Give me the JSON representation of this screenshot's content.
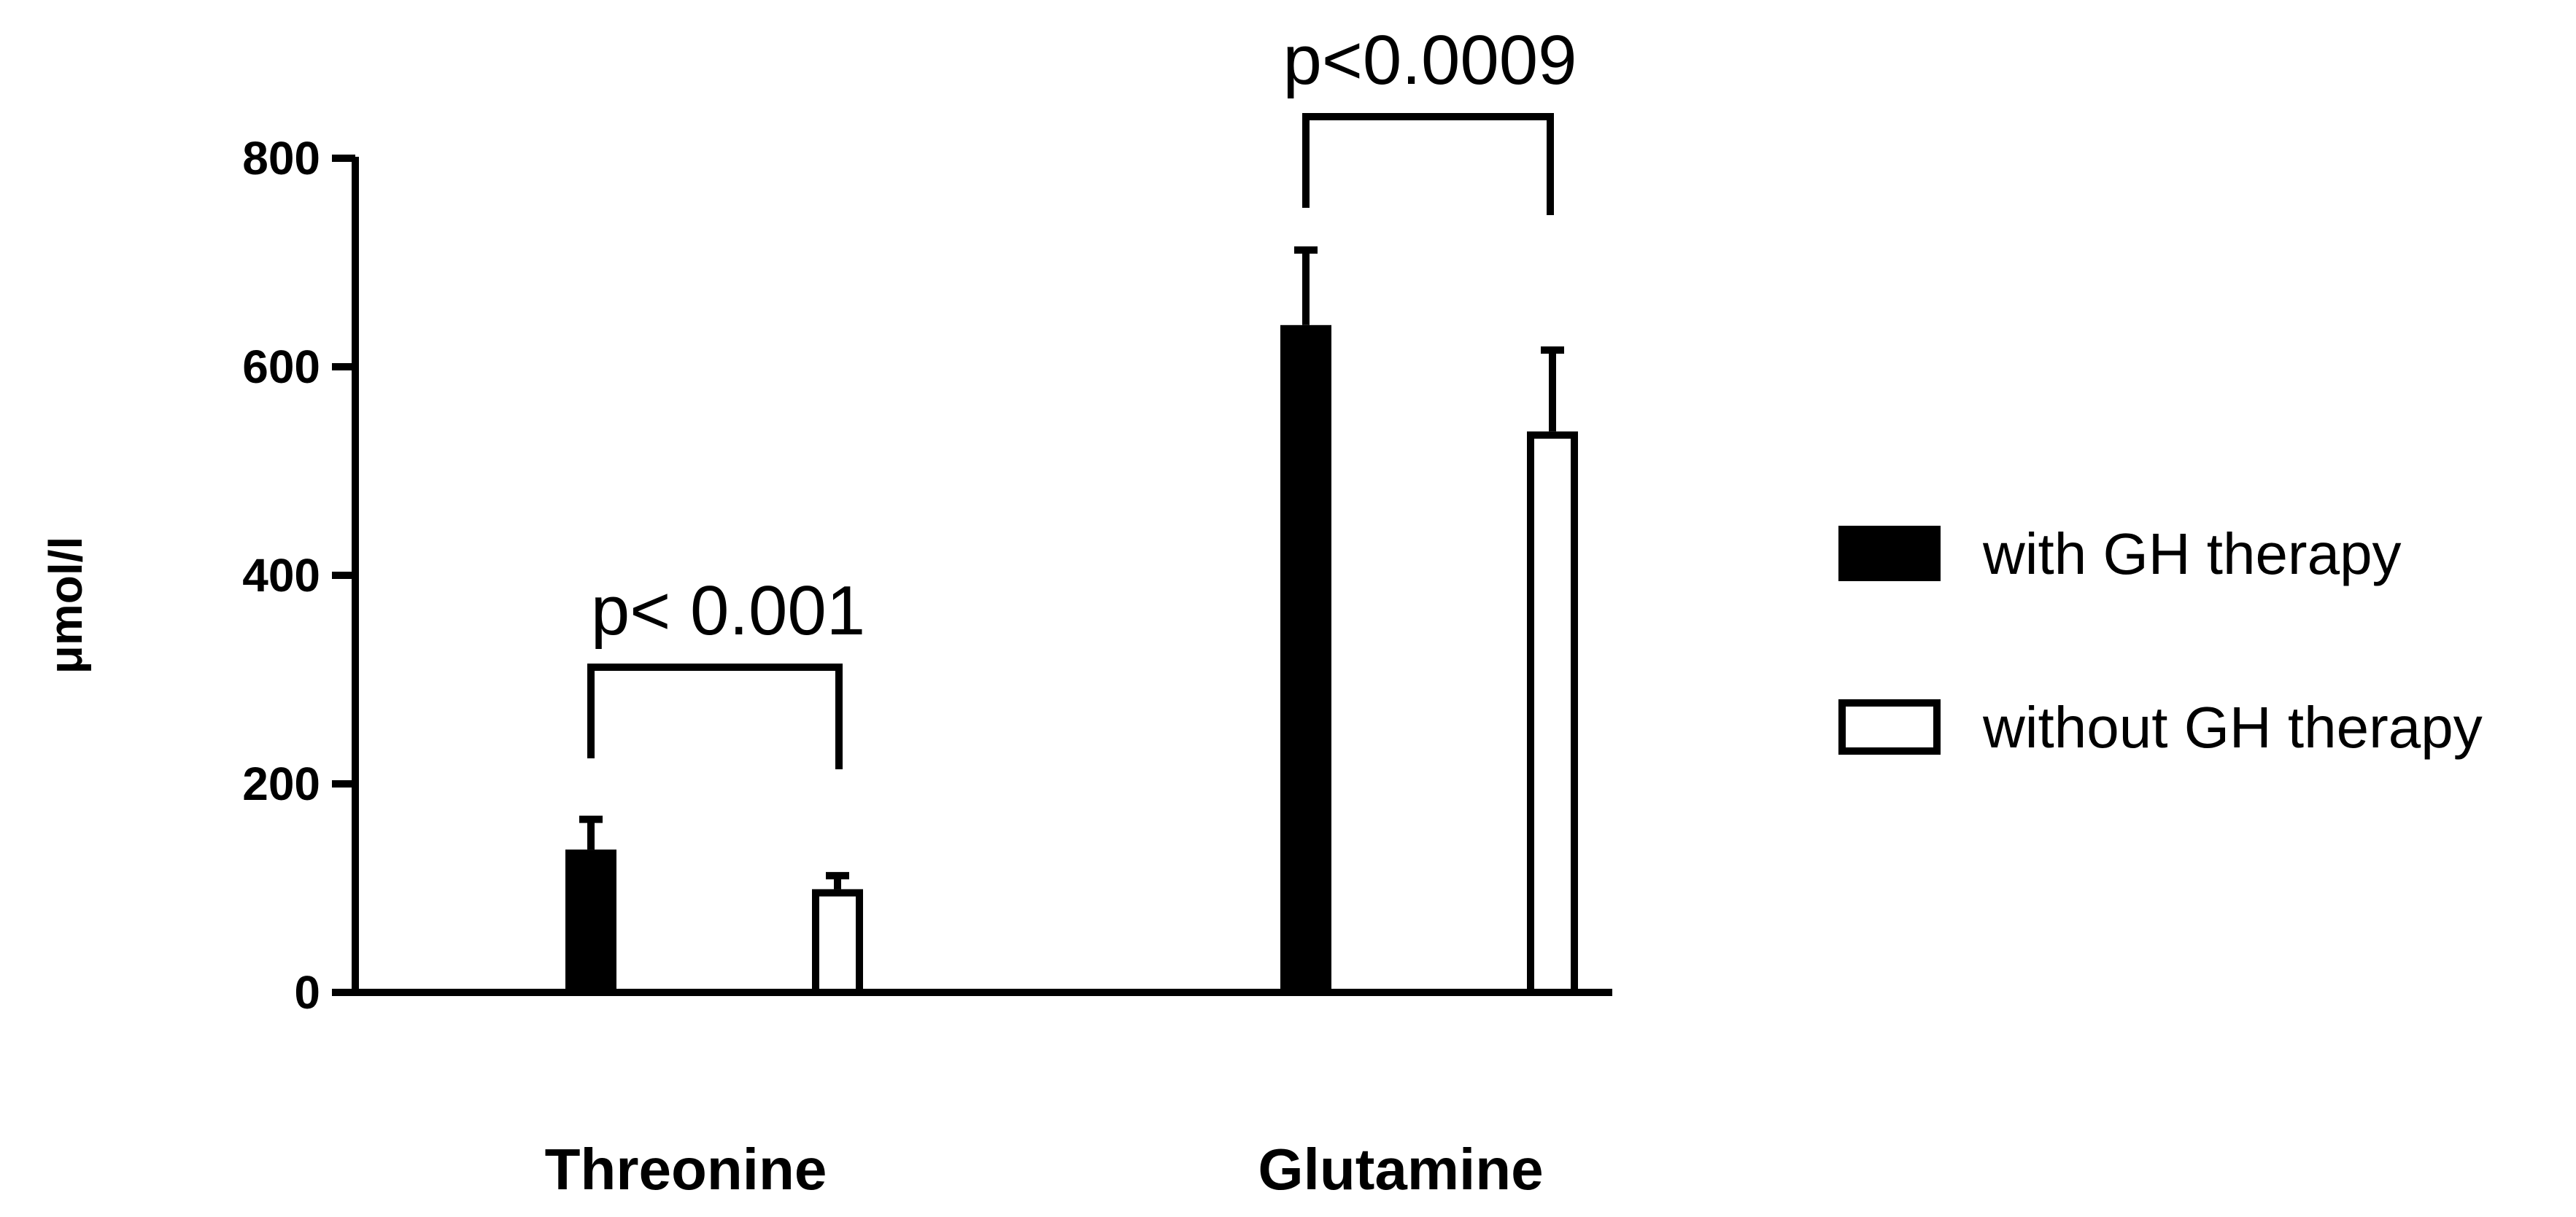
{
  "chart_data": {
    "type": "bar",
    "title": "",
    "xlabel": "",
    "ylabel": "μmol/l",
    "categories": [
      "Threonine",
      "Glutamine"
    ],
    "ylim": [
      0,
      800
    ],
    "yticks": [
      0,
      200,
      400,
      600,
      800
    ],
    "grid": false,
    "legend_position": "right",
    "series": [
      {
        "name": "with GH therapy",
        "color": "#000000",
        "fill": "solid",
        "values": [
          137,
          640
        ],
        "errors": [
          29,
          72
        ]
      },
      {
        "name": "without GH therapy",
        "color": "#000000",
        "fill": "hollow",
        "values": [
          99,
          538
        ],
        "errors": [
          13,
          78
        ]
      }
    ],
    "annotations": [
      {
        "category": "Threonine",
        "text": "p< 0.001"
      },
      {
        "category": "Glutamine",
        "text": "p<0.0009"
      }
    ]
  }
}
